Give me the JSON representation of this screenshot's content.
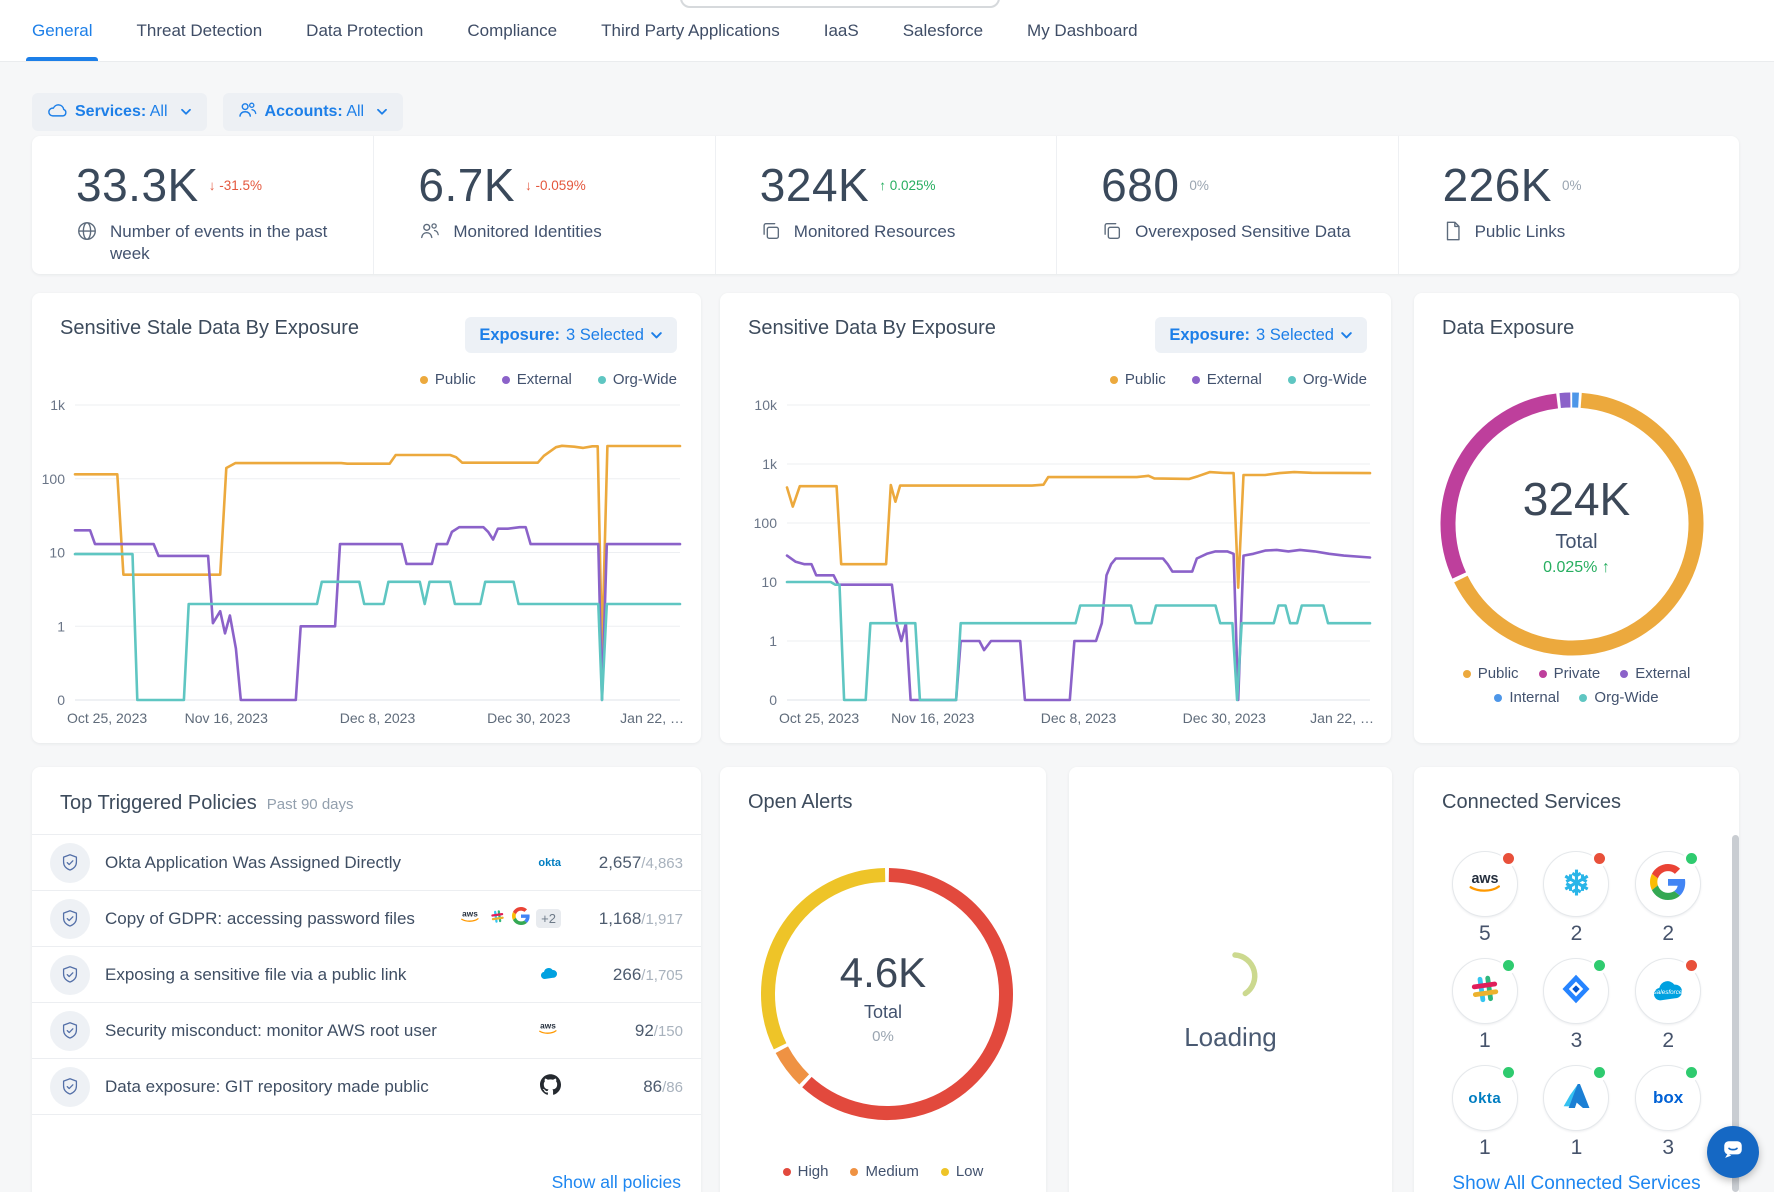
{
  "nav": {
    "tabs": [
      {
        "label": "General",
        "active": true
      },
      {
        "label": "Threat Detection"
      },
      {
        "label": "Data Protection"
      },
      {
        "label": "Compliance"
      },
      {
        "label": "Third Party Applications"
      },
      {
        "label": "IaaS"
      },
      {
        "label": "Salesforce"
      },
      {
        "label": "My Dashboard"
      }
    ]
  },
  "filters": {
    "services_label": "Services:",
    "services_value": "All",
    "accounts_label": "Accounts:",
    "accounts_value": "All"
  },
  "kpis": [
    {
      "value": "33.3K",
      "delta_arrow": "↓",
      "delta": "-31.5%",
      "delta_dir": "down",
      "label": "Number of events in the past week"
    },
    {
      "value": "6.7K",
      "delta_arrow": "↓",
      "delta": "-0.059%",
      "delta_dir": "down",
      "label": "Monitored Identities"
    },
    {
      "value": "324K",
      "delta_arrow": "↑",
      "delta": "0.025%",
      "delta_dir": "up",
      "label": "Monitored Resources"
    },
    {
      "value": "680",
      "delta_arrow": "",
      "delta": "0%",
      "delta_dir": "flat",
      "label": "Overexposed Sensitive Data"
    },
    {
      "value": "226K",
      "delta_arrow": "",
      "delta": "0%",
      "delta_dir": "flat",
      "label": "Public Links"
    }
  ],
  "stale_chart": {
    "title": "Sensitive Stale Data By Exposure",
    "filter_bold": "Exposure:",
    "filter_value": "3 Selected",
    "legend": [
      "Public",
      "External",
      "Org-Wide"
    ]
  },
  "exposure_chart": {
    "title": "Sensitive Data By Exposure",
    "filter_bold": "Exposure:",
    "filter_value": "3 Selected",
    "legend": [
      "Public",
      "External",
      "Org-Wide"
    ]
  },
  "data_exposure": {
    "title": "Data Exposure",
    "legend": [
      "Public",
      "Private",
      "External",
      "Internal",
      "Org-Wide"
    ]
  },
  "open_alerts": {
    "title": "Open Alerts",
    "legend": [
      "High",
      "Medium",
      "Low"
    ]
  },
  "loading": {
    "text": "Loading"
  },
  "policies": {
    "title": "Top Triggered Policies",
    "subtitle": "Past 90 days",
    "link": "Show all policies",
    "rows": [
      {
        "name": "Okta Application Was Assigned Directly",
        "count": "2,657",
        "total": "/4,863"
      },
      {
        "name": "Copy of GDPR: accessing password files",
        "count": "1,168",
        "total": "/1,917",
        "extra_badge": "+2"
      },
      {
        "name": "Exposing a sensitive file via a public link",
        "count": "266",
        "total": "/1,705"
      },
      {
        "name": "Security misconduct: monitor AWS root user",
        "count": "92",
        "total": "/150"
      },
      {
        "name": "Data exposure: GIT repository made public",
        "count": "86",
        "total": "/86"
      }
    ]
  },
  "connected": {
    "title": "Connected Services",
    "link": "Show All Connected Services",
    "services": [
      {
        "name": "aws",
        "count": "5",
        "status": "red"
      },
      {
        "name": "snowflake",
        "count": "2",
        "status": "red"
      },
      {
        "name": "google",
        "count": "2",
        "status": "green"
      },
      {
        "name": "slack",
        "count": "1",
        "status": "green"
      },
      {
        "name": "jira",
        "count": "3",
        "status": "green"
      },
      {
        "name": "salesforce",
        "count": "2",
        "status": "red"
      },
      {
        "name": "okta",
        "count": "1",
        "status": "green"
      },
      {
        "name": "azure",
        "count": "1",
        "status": "green"
      },
      {
        "name": "box",
        "count": "3",
        "status": "green"
      }
    ]
  },
  "colors": {
    "accent_blue": "#1d7fe8",
    "public": "#ECA93D",
    "external": "#8B62C9",
    "org_wide": "#5FC6C2",
    "private": "#BE3F9C",
    "internal": "#4D96E8",
    "high": "#E2493D",
    "medium": "#EF9243",
    "low": "#EEC428",
    "delta_down": "#E4573D",
    "delta_up": "#27AE60",
    "delta_flat": "#9aa5b1",
    "status_red": "#E8503A",
    "status_green": "#2FCB6F",
    "spinner": "#CCD98F"
  },
  "chart_data": [
    {
      "type": "line",
      "title": "Sensitive Stale Data By Exposure",
      "y_scale": "log",
      "y_ticks": [
        "0",
        "1",
        "10",
        "100",
        "1k"
      ],
      "x_ticks": [
        "Oct 25, 2023",
        "Nov 16, 2023",
        "Dec 8, 2023",
        "Dec 30, 2023",
        "Jan 22, …"
      ],
      "series": [
        {
          "name": "Public",
          "color": "#ECA93D",
          "points": [
            [
              0,
              115
            ],
            [
              7,
              115
            ],
            [
              8,
              5
            ],
            [
              24,
              5
            ],
            [
              25,
              140
            ],
            [
              26.5,
              163
            ],
            [
              44,
              163
            ],
            [
              45,
              160
            ],
            [
              52,
              160
            ],
            [
              53,
              210
            ],
            [
              62,
              210
            ],
            [
              63,
              196
            ],
            [
              64,
              165
            ],
            [
              76.5,
              165
            ],
            [
              77.5,
              205
            ],
            [
              79.5,
              268
            ],
            [
              80.5,
              280
            ],
            [
              82.5,
              272
            ],
            [
              84,
              262
            ],
            [
              85.5,
              275
            ],
            [
              86.4,
              275
            ],
            [
              87.1,
              0.45
            ],
            [
              88,
              278
            ],
            [
              100,
              278
            ]
          ]
        },
        {
          "name": "External",
          "color": "#8B62C9",
          "points": [
            [
              0,
              20
            ],
            [
              2.5,
              20
            ],
            [
              3.3,
              13
            ],
            [
              13,
              13
            ],
            [
              13.8,
              9
            ],
            [
              22,
              9
            ],
            [
              22.8,
              1.1
            ],
            [
              24,
              1.6
            ],
            [
              24.8,
              0.8
            ],
            [
              25.6,
              1.4
            ],
            [
              26.6,
              0.5
            ],
            [
              27.4,
              0
            ],
            [
              36.5,
              0
            ],
            [
              37.3,
              1
            ],
            [
              43,
              1
            ],
            [
              43.8,
              13
            ],
            [
              54,
              13
            ],
            [
              54.8,
              7
            ],
            [
              59,
              7
            ],
            [
              59.8,
              13
            ],
            [
              61.5,
              13
            ],
            [
              62.3,
              19
            ],
            [
              63.5,
              22
            ],
            [
              66,
              22
            ],
            [
              67.5,
              22
            ],
            [
              68.3,
              19
            ],
            [
              69.1,
              15
            ],
            [
              69.9,
              21
            ],
            [
              71.5,
              21
            ],
            [
              73.5,
              22
            ],
            [
              74.5,
              22
            ],
            [
              75.3,
              13
            ],
            [
              86.5,
              13
            ],
            [
              87.1,
              0
            ],
            [
              87.9,
              13
            ],
            [
              100,
              13
            ]
          ]
        },
        {
          "name": "Org-Wide",
          "color": "#5FC6C2",
          "points": [
            [
              0,
              9.5
            ],
            [
              9.5,
              9.5
            ],
            [
              10.3,
              0
            ],
            [
              18,
              0
            ],
            [
              18.8,
              2
            ],
            [
              40,
              2
            ],
            [
              40.8,
              4
            ],
            [
              47,
              4
            ],
            [
              47.8,
              2
            ],
            [
              51,
              2
            ],
            [
              51.8,
              4
            ],
            [
              57,
              4
            ],
            [
              57.8,
              2
            ],
            [
              58.6,
              4
            ],
            [
              62,
              4
            ],
            [
              62.8,
              2
            ],
            [
              67,
              2
            ],
            [
              67.8,
              4
            ],
            [
              72.5,
              4
            ],
            [
              73.3,
              2
            ],
            [
              86.5,
              2
            ],
            [
              87.1,
              0
            ],
            [
              87.9,
              2
            ],
            [
              100,
              2
            ]
          ]
        }
      ]
    },
    {
      "type": "line",
      "title": "Sensitive Data By Exposure",
      "y_scale": "log",
      "y_ticks": [
        "0",
        "1",
        "10",
        "100",
        "1k",
        "10k"
      ],
      "x_ticks": [
        "Oct 25, 2023",
        "Nov 16, 2023",
        "Dec 8, 2023",
        "Dec 30, 2023",
        "Jan 22, …"
      ],
      "series": [
        {
          "name": "Public",
          "color": "#ECA93D",
          "points": [
            [
              0,
              400
            ],
            [
              1,
              190
            ],
            [
              2.2,
              420
            ],
            [
              8.5,
              420
            ],
            [
              9.3,
              20
            ],
            [
              17,
              20
            ],
            [
              17.8,
              440
            ],
            [
              18.6,
              230
            ],
            [
              19.4,
              430
            ],
            [
              42,
              430
            ],
            [
              44,
              445
            ],
            [
              44.8,
              600
            ],
            [
              60,
              600
            ],
            [
              62,
              630
            ],
            [
              63,
              570
            ],
            [
              69,
              560
            ],
            [
              70.5,
              620
            ],
            [
              72.5,
              730
            ],
            [
              75,
              705
            ],
            [
              76.6,
              700
            ],
            [
              77.4,
              8
            ],
            [
              78.3,
              650
            ],
            [
              82,
              650
            ],
            [
              84.5,
              700
            ],
            [
              87,
              730
            ],
            [
              90,
              710
            ],
            [
              100,
              700
            ]
          ]
        },
        {
          "name": "External",
          "color": "#8B62C9",
          "points": [
            [
              0,
              28
            ],
            [
              1.5,
              22
            ],
            [
              3,
              20
            ],
            [
              4.2,
              20
            ],
            [
              5,
              13
            ],
            [
              8,
              13
            ],
            [
              8.8,
              9
            ],
            [
              18,
              9
            ],
            [
              18.8,
              2
            ],
            [
              19.6,
              1
            ],
            [
              20.4,
              2
            ],
            [
              21.2,
              0
            ],
            [
              29,
              0
            ],
            [
              29.8,
              1
            ],
            [
              33,
              1
            ],
            [
              33.8,
              0.7
            ],
            [
              35,
              1
            ],
            [
              40,
              1
            ],
            [
              40.8,
              0
            ],
            [
              48.5,
              0
            ],
            [
              49.3,
              1
            ],
            [
              53,
              1
            ],
            [
              54,
              2
            ],
            [
              54.8,
              13
            ],
            [
              55.6,
              20
            ],
            [
              56.4,
              25
            ],
            [
              64.5,
              25
            ],
            [
              65.3,
              20
            ],
            [
              66.1,
              15
            ],
            [
              69.5,
              15
            ],
            [
              70.3,
              25
            ],
            [
              72,
              30
            ],
            [
              73.5,
              33
            ],
            [
              75.5,
              33
            ],
            [
              76.6,
              30
            ],
            [
              77.4,
              0
            ],
            [
              78.3,
              28
            ],
            [
              80,
              30
            ],
            [
              82,
              34
            ],
            [
              84,
              35
            ],
            [
              86,
              33
            ],
            [
              88,
              35
            ],
            [
              90.5,
              33
            ],
            [
              93,
              30
            ],
            [
              95.5,
              28
            ],
            [
              100,
              26
            ]
          ]
        },
        {
          "name": "Org-Wide",
          "color": "#5FC6C2",
          "points": [
            [
              0,
              10
            ],
            [
              7.5,
              10
            ],
            [
              8.3,
              9
            ],
            [
              9,
              9
            ],
            [
              9.8,
              0
            ],
            [
              13.5,
              0
            ],
            [
              14.3,
              2
            ],
            [
              22,
              2
            ],
            [
              22.8,
              0
            ],
            [
              29,
              0
            ],
            [
              29.8,
              2
            ],
            [
              49.5,
              2
            ],
            [
              50.3,
              4
            ],
            [
              59,
              4
            ],
            [
              59.8,
              2
            ],
            [
              62.5,
              2
            ],
            [
              63.3,
              4
            ],
            [
              69.5,
              4
            ],
            [
              73.5,
              4
            ],
            [
              74.3,
              2
            ],
            [
              76.4,
              2
            ],
            [
              77.2,
              0
            ],
            [
              78,
              2
            ],
            [
              83.5,
              2
            ],
            [
              84.3,
              4
            ],
            [
              85.5,
              4
            ],
            [
              86.3,
              2
            ],
            [
              87.5,
              2
            ],
            [
              88.3,
              4
            ],
            [
              92,
              4
            ],
            [
              92.8,
              2
            ],
            [
              100,
              2
            ]
          ]
        }
      ]
    },
    {
      "type": "donut",
      "title": "Data Exposure",
      "total": "324K",
      "center_label": "Total",
      "change": "0.025% ↑",
      "start_angle": -6,
      "slices": [
        {
          "name": "External",
          "color": "#8B62C9",
          "pct": 1.6
        },
        {
          "name": "Internal",
          "color": "#4D96E8",
          "pct": 1.0
        },
        {
          "name": "Public",
          "color": "#ECA93D",
          "pct": 67.0
        },
        {
          "name": "Private",
          "color": "#BE3F9C",
          "pct": 30.4
        },
        {
          "name": "Org-Wide",
          "color": "#5FC6C2",
          "pct": 0.0
        }
      ]
    },
    {
      "type": "donut",
      "title": "Open Alerts",
      "total": "4.6K",
      "center_label": "Total",
      "change": "0%",
      "start_angle": 0,
      "slices": [
        {
          "name": "High",
          "color": "#E2493D",
          "pct": 62.0
        },
        {
          "name": "Medium",
          "color": "#EF9243",
          "pct": 5.5
        },
        {
          "name": "Low",
          "color": "#EEC428",
          "pct": 32.5
        }
      ]
    }
  ]
}
